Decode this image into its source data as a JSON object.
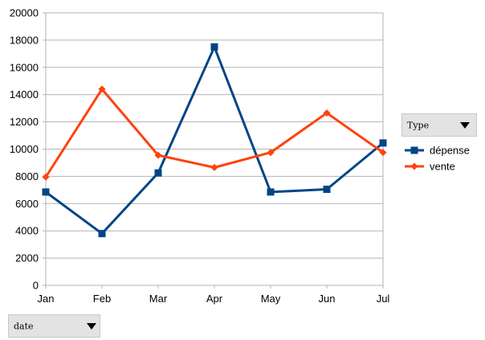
{
  "chart_data": {
    "type": "line",
    "categories": [
      "Jan",
      "Feb",
      "Mar",
      "Apr",
      "May",
      "Jun",
      "Jul"
    ],
    "series": [
      {
        "name": "dépense",
        "color": "#004586",
        "marker": "square",
        "values": [
          6850,
          3800,
          8250,
          17500,
          6850,
          7050,
          10450
        ]
      },
      {
        "name": "vente",
        "color": "#ff420e",
        "marker": "diamond",
        "values": [
          7950,
          14400,
          9550,
          8650,
          9750,
          12650,
          9750
        ]
      }
    ],
    "ylim": [
      0,
      20000
    ],
    "yticks": [
      "0",
      "2000",
      "4000",
      "6000",
      "8000",
      "10000",
      "12000",
      "14000",
      "16000",
      "18000",
      "20000"
    ],
    "grid": "horizontal",
    "legend_position": "right"
  },
  "filters": {
    "type": {
      "label": "Type"
    },
    "date": {
      "label": "date"
    }
  }
}
